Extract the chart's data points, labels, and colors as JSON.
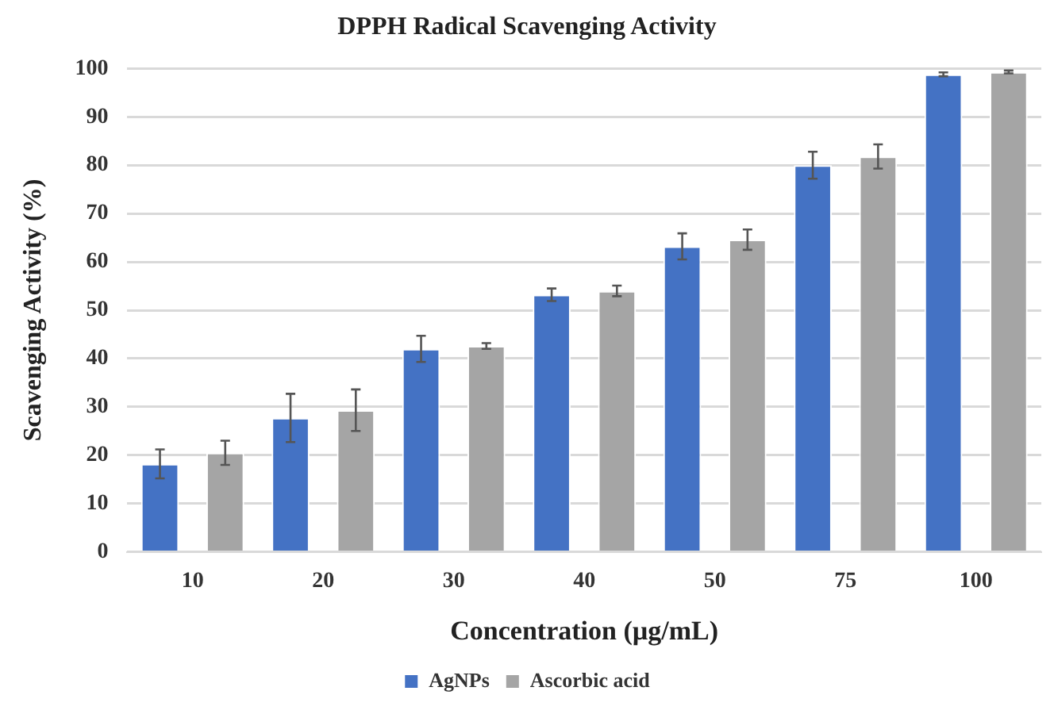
{
  "chart_data": {
    "type": "bar",
    "title": "DPPH Radical Scavenging Activity",
    "xlabel": "Concentration (µg/mL)",
    "ylabel": "Scavenging Activity (%)",
    "categories": [
      "10",
      "20",
      "30",
      "40",
      "50",
      "75",
      "100"
    ],
    "series": [
      {
        "name": "AgNPs",
        "color": "#4472c4",
        "values": [
          18.2,
          27.7,
          42,
          53.2,
          63.2,
          80,
          98.8
        ],
        "errors": [
          3,
          5,
          2.7,
          1.3,
          2.7,
          2.8,
          0.4
        ]
      },
      {
        "name": "Ascorbic acid",
        "color": "#a5a5a5",
        "values": [
          20.5,
          29.3,
          42.6,
          54,
          64.6,
          81.8,
          99.3
        ],
        "errors": [
          2.5,
          4.3,
          0.6,
          1.1,
          2.1,
          2.5,
          0.3
        ]
      }
    ],
    "ylim": [
      0,
      100
    ],
    "yticks": [
      0,
      10,
      20,
      30,
      40,
      50,
      60,
      70,
      80,
      90,
      100
    ],
    "grid": "y",
    "legend": "bottom"
  }
}
